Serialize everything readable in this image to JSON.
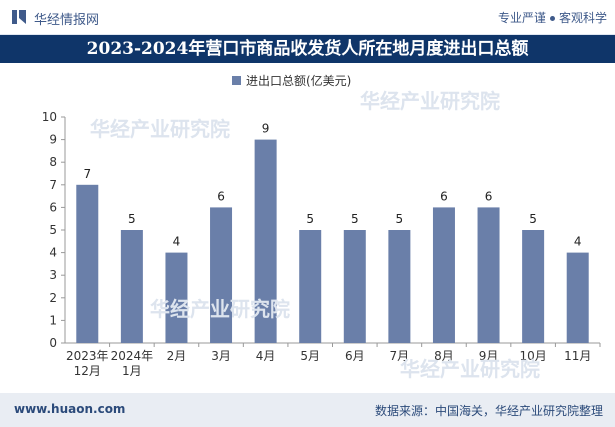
{
  "header": {
    "brand": "华经情报网",
    "tagline_left": "专业严谨",
    "tagline_right": "客观科学",
    "logo_icon": "brand-logo-icon"
  },
  "title": "2023-2024年营口市商品收发货人所在地月度进出口总额",
  "footer": {
    "site": "www.huaon.com",
    "source": "数据来源：中国海关，华经产业研究院整理"
  },
  "watermarks": [
    "华经产业研究院",
    "www.huaon.com"
  ],
  "colors": {
    "bar": "#6a7fa9",
    "title_band": "#0f3569",
    "brand_text": "#3f5a8a",
    "footer_bg": "#e9edf3"
  },
  "chart_data": {
    "type": "bar",
    "title": "",
    "xlabel": "",
    "ylabel": "",
    "legend": {
      "position": "top",
      "marker": "square"
    },
    "categories": [
      [
        "2023年",
        "12月"
      ],
      [
        "2024年",
        "1月"
      ],
      [
        "2月"
      ],
      [
        "3月"
      ],
      [
        "4月"
      ],
      [
        "5月"
      ],
      [
        "6月"
      ],
      [
        "7月"
      ],
      [
        "8月"
      ],
      [
        "9月"
      ],
      [
        "10月"
      ],
      [
        "11月"
      ]
    ],
    "series": [
      {
        "name": "进出口总额(亿美元)",
        "values": [
          7,
          5,
          4,
          6,
          9,
          5,
          5,
          5,
          6,
          6,
          5,
          4
        ]
      }
    ],
    "ylim": [
      0,
      10
    ],
    "yticks": [
      0,
      1,
      2,
      3,
      4,
      5,
      6,
      7,
      8,
      9,
      10
    ],
    "grid": false,
    "data_labels": [
      "7",
      "5",
      "4",
      "6",
      "9",
      "5",
      "5",
      "5",
      "6",
      "6",
      "5",
      "4"
    ]
  }
}
